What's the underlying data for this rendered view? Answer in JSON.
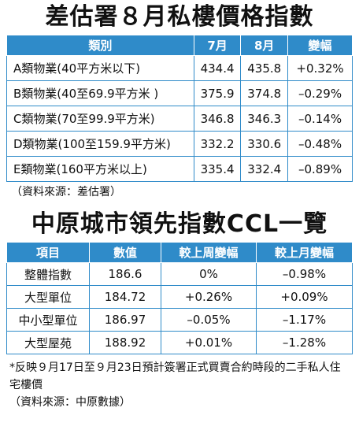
{
  "table_a": {
    "title": "差估署８月私樓價格指數",
    "headers": [
      "類別",
      "7月",
      "8月",
      "變幅"
    ],
    "rows": [
      {
        "cat": "A類物業(40平方米以下)",
        "jul": "434.4",
        "aug": "435.8",
        "chg": "+0.32%"
      },
      {
        "cat": "B類物業(40至69.9平方米 )",
        "jul": "375.9",
        "aug": "374.8",
        "chg": "–0.29%"
      },
      {
        "cat": "C類物業(70至99.9平方米)",
        "jul": "346.8",
        "aug": "346.3",
        "chg": "–0.14%"
      },
      {
        "cat": "D類物業(100至159.9平方米)",
        "jul": "332.2",
        "aug": "330.6",
        "chg": "–0.48%"
      },
      {
        "cat": "E類物業(160平方米以上)",
        "jul": "335.4",
        "aug": "332.4",
        "chg": "–0.89%"
      }
    ],
    "source": "（資料來源：差估署）"
  },
  "table_b": {
    "title": "中原城市領先指數CCL一覽",
    "headers": [
      "項目",
      "數值",
      "較上周變幅",
      "較上月變幅"
    ],
    "rows": [
      {
        "item": "整體指數",
        "val": "186.6",
        "wk": "0%",
        "mo": "–0.98%"
      },
      {
        "item": "大型單位",
        "val": "184.72",
        "wk": "+0.26%",
        "mo": "+0.09%"
      },
      {
        "item": "中小型單位",
        "val": "186.97",
        "wk": "–0.05%",
        "mo": "–1.17%"
      },
      {
        "item": "大型屋苑",
        "val": "188.92",
        "wk": "+0.01%",
        "mo": "–1.28%"
      }
    ],
    "footnote": "*反映９月17日至９月23日預計簽署正式買賣合約時段的二手私人住宅樓價",
    "source": "（資料來源：中原數據）"
  },
  "colors": {
    "header_bg": "#2f8bc9",
    "border": "#2f8bc9"
  }
}
